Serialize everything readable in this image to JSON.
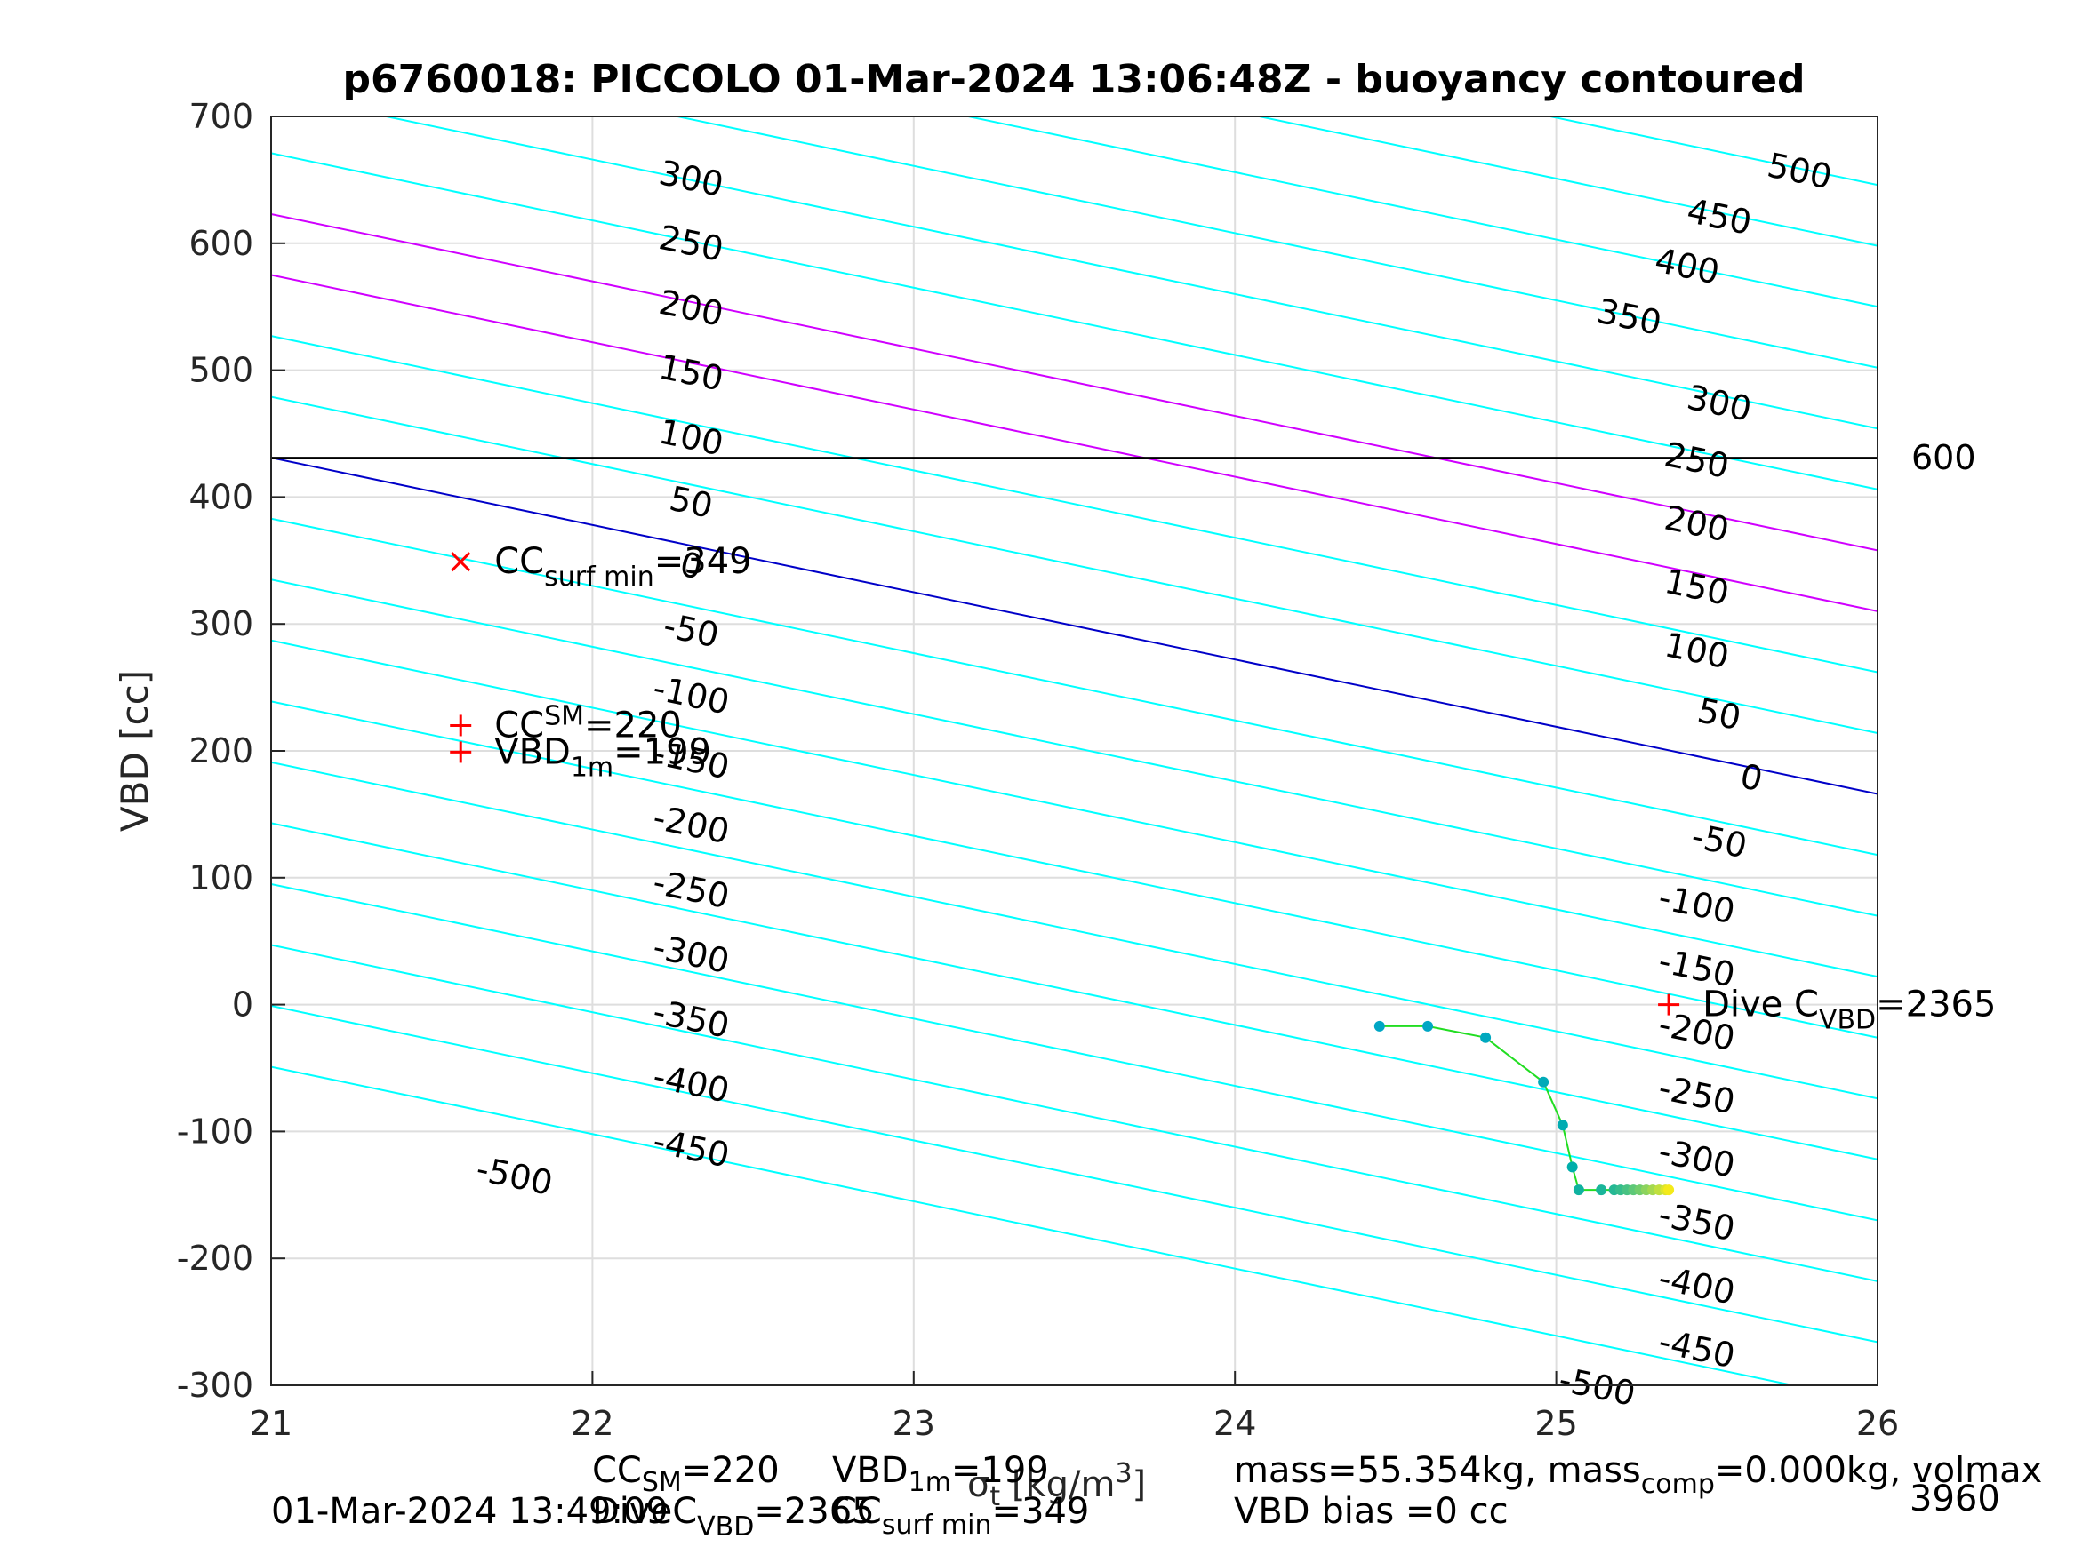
{
  "chart_data": {
    "type": "line",
    "title": "p6760018: PICCOLO 01-Mar-2024 13:06:48Z - buoyancy contoured",
    "ylabel": "VBD [cc]",
    "xlabel": {
      "prefix": "σ",
      "sub": "t",
      "suffix": " [kg/m",
      "sup": "3",
      "end": "]"
    },
    "xlim": [
      21,
      26
    ],
    "ylim": [
      -300,
      700
    ],
    "xticks": [
      21,
      22,
      23,
      24,
      25,
      26
    ],
    "yticks": [
      -300,
      -200,
      -100,
      0,
      100,
      200,
      300,
      400,
      500,
      600,
      700
    ],
    "grid": true,
    "contour_slope_cc_per_density": -53.0,
    "contour_zero_vbd_at_21": 431,
    "contours": {
      "cyan": [
        -500,
        -450,
        -400,
        -350,
        -300,
        -250,
        -200,
        -150,
        -100,
        -50,
        50,
        100,
        250,
        300,
        350,
        400,
        450,
        500
      ],
      "magenta": [
        150,
        200
      ],
      "blue": [
        0
      ],
      "colors": {
        "cyan": "#00ffff",
        "magenta": "#d000ff",
        "blue": "#0000c8"
      }
    },
    "contour_labels_left": [
      {
        "text": "300",
        "x": 22.3,
        "y": 642
      },
      {
        "text": "250",
        "x": 22.3,
        "y": 591
      },
      {
        "text": "200",
        "x": 22.3,
        "y": 540
      },
      {
        "text": "150",
        "x": 22.3,
        "y": 489
      },
      {
        "text": "100",
        "x": 22.3,
        "y": 438
      },
      {
        "text": "50",
        "x": 22.3,
        "y": 387
      },
      {
        "text": "0",
        "x": 22.3,
        "y": 337
      },
      {
        "text": "-50",
        "x": 22.3,
        "y": 286
      },
      {
        "text": "-100",
        "x": 22.3,
        "y": 235
      },
      {
        "text": "-150",
        "x": 22.3,
        "y": 184
      },
      {
        "text": "-200",
        "x": 22.3,
        "y": 133
      },
      {
        "text": "-250",
        "x": 22.3,
        "y": 82
      },
      {
        "text": "-300",
        "x": 22.3,
        "y": 31
      },
      {
        "text": "-350",
        "x": 22.3,
        "y": -20
      },
      {
        "text": "-400",
        "x": 22.3,
        "y": -71
      },
      {
        "text": "-450",
        "x": 22.3,
        "y": -122
      },
      {
        "text": "-500",
        "x": 21.75,
        "y": -144
      }
    ],
    "contour_labels_right": [
      {
        "text": "500",
        "x": 25.75,
        "y": 648
      },
      {
        "text": "450",
        "x": 25.5,
        "y": 612
      },
      {
        "text": "400",
        "x": 25.4,
        "y": 573
      },
      {
        "text": "350",
        "x": 25.22,
        "y": 533
      },
      {
        "text": "300",
        "x": 25.5,
        "y": 465
      },
      {
        "text": "250",
        "x": 25.43,
        "y": 420
      },
      {
        "text": "200",
        "x": 25.43,
        "y": 370
      },
      {
        "text": "150",
        "x": 25.43,
        "y": 320
      },
      {
        "text": "100",
        "x": 25.43,
        "y": 270
      },
      {
        "text": "50",
        "x": 25.5,
        "y": 220
      },
      {
        "text": "0",
        "x": 25.6,
        "y": 170
      },
      {
        "text": "-50",
        "x": 25.5,
        "y": 120
      },
      {
        "text": "-100",
        "x": 25.43,
        "y": 70
      },
      {
        "text": "-150",
        "x": 25.43,
        "y": 20
      },
      {
        "text": "-200",
        "x": 25.43,
        "y": -30
      },
      {
        "text": "-250",
        "x": 25.43,
        "y": -80
      },
      {
        "text": "-300",
        "x": 25.43,
        "y": -130
      },
      {
        "text": "-350",
        "x": 25.43,
        "y": -180
      },
      {
        "text": "-400",
        "x": 25.43,
        "y": -230
      },
      {
        "text": "-450",
        "x": 25.43,
        "y": -280
      },
      {
        "text": "-500",
        "x": 25.12,
        "y": -310
      }
    ],
    "hline": {
      "y": 431,
      "label": "600",
      "color": "#000000"
    },
    "series": [
      {
        "x": [
          24.45,
          24.6,
          24.78,
          24.96,
          25.02,
          25.05,
          25.07,
          25.14,
          25.18,
          25.2,
          25.22,
          25.24,
          25.26,
          25.28,
          25.3,
          25.32,
          25.34,
          25.35
        ],
        "y": [
          -17,
          -17,
          -26,
          -61,
          -95,
          -128,
          -146,
          -146,
          -146,
          -146,
          -146,
          -146,
          -146,
          -146,
          -146,
          -146,
          -146,
          -146
        ],
        "line_color": "#22dd22",
        "point_colors": [
          "#00a6c4",
          "#00a6c4",
          "#00a8bf",
          "#00aab8",
          "#00acb2",
          "#00aeaa",
          "#10b2a0",
          "#1ab59a",
          "#25b894",
          "#35bd8c",
          "#48c283",
          "#5dc878",
          "#72cd6c",
          "#8cd35e",
          "#a4d94f",
          "#c0e03e",
          "#dce52c",
          "#f4ea1a"
        ]
      }
    ],
    "markers": [
      {
        "kind": "x",
        "x": 21.59,
        "y": 349,
        "color": "#ff0000",
        "label": {
          "main": "CC",
          "sub": "surf min",
          "value": "=349"
        }
      },
      {
        "kind": "plus",
        "x": 21.59,
        "y": 220,
        "color": "#ff0000",
        "label": {
          "main": "CC",
          "sup": "SM",
          "value": "=220"
        }
      },
      {
        "kind": "plus",
        "x": 21.59,
        "y": 199,
        "color": "#ff0000",
        "label": {
          "main": "VBD",
          "sub": "1m",
          "value": "=199"
        }
      },
      {
        "kind": "plus",
        "x": 25.35,
        "y": 0,
        "color": "#ff0000",
        "label": {
          "main": "Dive C",
          "sub": "VBD",
          "value": "=2365"
        }
      }
    ]
  },
  "footer": {
    "timestamp": "01-Mar-2024 13:49:09",
    "cc_sm": {
      "main": "CC",
      "sub": "SM",
      "value": "=220"
    },
    "vbd_1m": {
      "main": "VBD",
      "sub": "1m",
      "value": "=199"
    },
    "dive_c": {
      "main": "DiveC",
      "sub": "VBD",
      "value": "=2365"
    },
    "cc_surf_min": {
      "main": "CC",
      "sub": "surf min",
      "value": "=349"
    },
    "mass_text_a": "mass=55.354kg, mass",
    "mass_sub": "comp",
    "mass_text_b": "=0.000kg, volmax",
    "vbd_bias": "VBD bias =0 cc",
    "volmax_value": "3960"
  }
}
